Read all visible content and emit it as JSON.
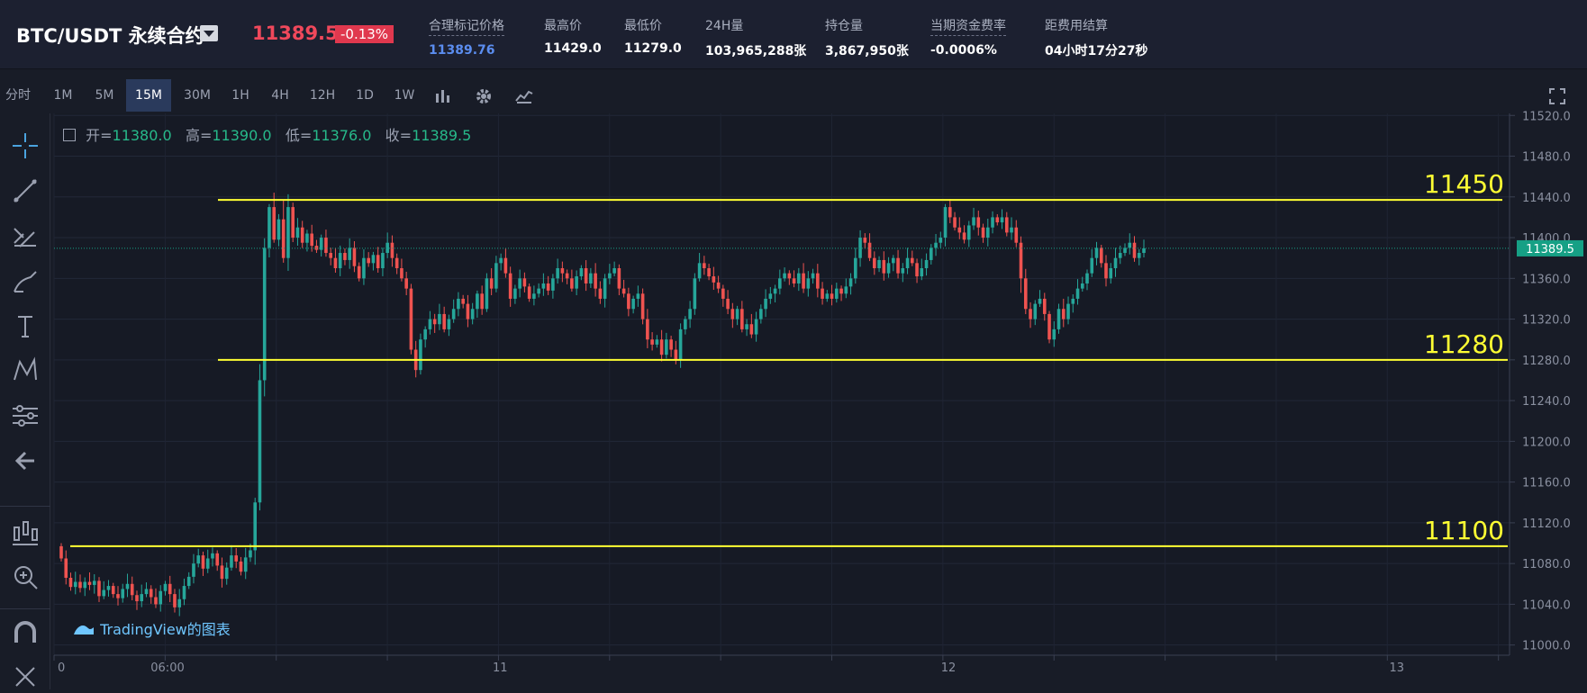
{
  "header": {
    "symbol": "BTC/USDT 永续合约",
    "last_price": "11389.5",
    "change": "-0.13%",
    "stats": [
      {
        "label": "合理标记价格",
        "value": "11389.76"
      },
      {
        "label": "最高价",
        "value": "11429.0"
      },
      {
        "label": "最低价",
        "value": "11279.0"
      },
      {
        "label": "24H量",
        "value": "103,965,288张"
      },
      {
        "label": "持仓量",
        "value": "3,867,950张"
      },
      {
        "label": "当期资金费率",
        "value": "-0.0006%"
      },
      {
        "label": "距费用结算",
        "value": "04小时17分27秒"
      }
    ]
  },
  "toolbar": {
    "timeframes": [
      "分时",
      "1M",
      "5M",
      "15M",
      "30M",
      "1H",
      "4H",
      "12H",
      "1D",
      "1W"
    ],
    "active": "15M"
  },
  "ohlc": {
    "open_label": "开=",
    "open": "11380.0",
    "high_label": "高=",
    "high": "11390.0",
    "low_label": "低=",
    "low": "11376.0",
    "close_label": "收=",
    "close": "11389.5"
  },
  "watermark": "TradingView的图表",
  "colors": {
    "up": "#26a69a",
    "down": "#ef5350",
    "level": "#ffff33",
    "current": "#16a085"
  },
  "chart_data": {
    "type": "candlestick",
    "ylim": [
      10990,
      11522
    ],
    "y_ticks": [
      11000,
      11040,
      11080,
      11120,
      11160,
      11200,
      11240,
      11280,
      11320,
      11360,
      11400,
      11440,
      11480,
      11520
    ],
    "x_ticks": [
      {
        "label": "0",
        "pos": 0
      },
      {
        "label": "06:00",
        "pos": 0.0755
      },
      {
        "label": "11",
        "pos": 0.304
      },
      {
        "label": "12",
        "pos": 0.612
      },
      {
        "label": "13",
        "pos": 0.92
      }
    ],
    "current_price": 11389.5,
    "levels": [
      {
        "label": "11450",
        "price": 11437
      },
      {
        "label": "11280",
        "price": 11280
      },
      {
        "label": "11100",
        "price": 11097
      }
    ],
    "closes": [
      11085,
      11066,
      11057,
      11062,
      11056,
      11062,
      11059,
      11063,
      11048,
      11054,
      11058,
      11050,
      11046,
      11055,
      11060,
      11049,
      11043,
      11050,
      11055,
      11047,
      11040,
      11053,
      11060,
      11050,
      11037,
      11045,
      11058,
      11067,
      11080,
      11088,
      11075,
      11085,
      11090,
      11078,
      11065,
      11076,
      11088,
      11082,
      11072,
      11086,
      11093,
      11140,
      11260,
      11390,
      11430,
      11398,
      11418,
      11380,
      11430,
      11400,
      11410,
      11395,
      11404,
      11392,
      11388,
      11400,
      11385,
      11380,
      11370,
      11385,
      11378,
      11390,
      11372,
      11360,
      11380,
      11375,
      11383,
      11370,
      11385,
      11395,
      11380,
      11370,
      11360,
      11350,
      11290,
      11270,
      11300,
      11310,
      11320,
      11315,
      11325,
      11310,
      11320,
      11330,
      11340,
      11335,
      11320,
      11330,
      11345,
      11330,
      11360,
      11350,
      11375,
      11380,
      11365,
      11340,
      11350,
      11360,
      11352,
      11340,
      11345,
      11350,
      11355,
      11348,
      11360,
      11370,
      11365,
      11360,
      11350,
      11362,
      11370,
      11355,
      11365,
      11350,
      11340,
      11360,
      11365,
      11370,
      11350,
      11345,
      11330,
      11340,
      11345,
      11320,
      11300,
      11295,
      11300,
      11285,
      11300,
      11290,
      11280,
      11310,
      11320,
      11330,
      11360,
      11375,
      11370,
      11362,
      11356,
      11350,
      11340,
      11330,
      11320,
      11330,
      11310,
      11315,
      11305,
      11320,
      11330,
      11340,
      11345,
      11350,
      11360,
      11365,
      11360,
      11355,
      11365,
      11350,
      11360,
      11365,
      11350,
      11340,
      11345,
      11340,
      11350,
      11345,
      11352,
      11360,
      11380,
      11400,
      11395,
      11380,
      11370,
      11378,
      11365,
      11375,
      11380,
      11365,
      11370,
      11380,
      11375,
      11362,
      11370,
      11378,
      11390,
      11395,
      11400,
      11430,
      11420,
      11410,
      11405,
      11398,
      11412,
      11420,
      11410,
      11400,
      11410,
      11420,
      11415,
      11420,
      11405,
      11410,
      11395,
      11360,
      11330,
      11320,
      11335,
      11340,
      11325,
      11300,
      11310,
      11330,
      11320,
      11335,
      11340,
      11350,
      11355,
      11365,
      11380,
      11390,
      11375,
      11360,
      11370,
      11380,
      11385,
      11390,
      11395,
      11380,
      11385,
      11389.5
    ]
  }
}
